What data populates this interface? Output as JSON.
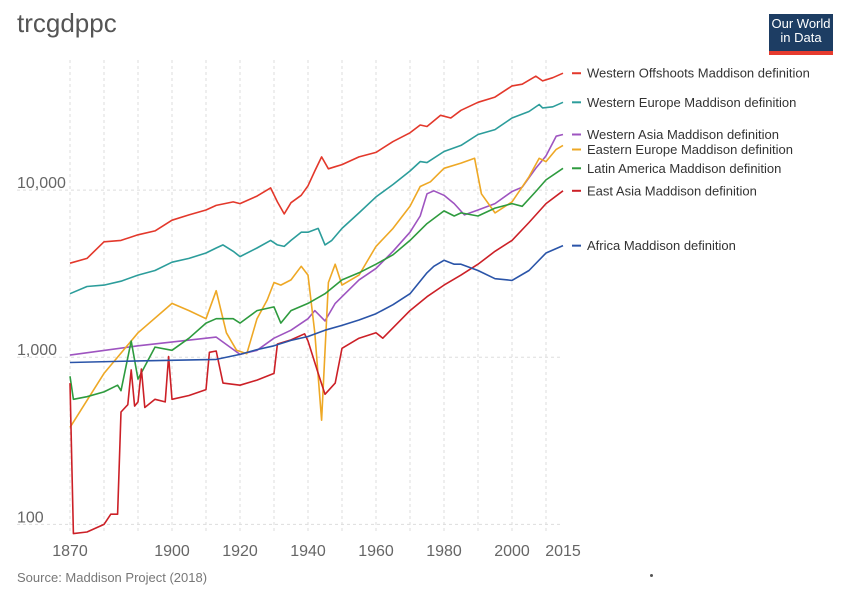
{
  "header": {
    "title": "trcgdppc",
    "logo_line1": "Our World",
    "logo_line2": "in Data"
  },
  "footer": {
    "source": "Source: Maddison Project (2018)"
  },
  "chart_data": {
    "type": "line",
    "title": "trcgdppc",
    "y_scale": "log",
    "xlim": [
      1870,
      2015
    ],
    "ylim": [
      90,
      60000
    ],
    "x_ticks": [
      1870,
      1900,
      1920,
      1940,
      1960,
      1980,
      2000,
      2015
    ],
    "y_ticks": [
      100,
      1000,
      10000
    ],
    "y_tick_labels": [
      "100",
      "1,000",
      "10,000"
    ],
    "grid": true,
    "legend": "right, labels at line ends",
    "series": [
      {
        "name": "Western Offshoots Maddison definition",
        "color": "#e3382b",
        "points": [
          [
            1870,
            3650
          ],
          [
            1875,
            3900
          ],
          [
            1880,
            4900
          ],
          [
            1885,
            5000
          ],
          [
            1890,
            5400
          ],
          [
            1895,
            5700
          ],
          [
            1900,
            6600
          ],
          [
            1905,
            7100
          ],
          [
            1910,
            7600
          ],
          [
            1913,
            8100
          ],
          [
            1918,
            8500
          ],
          [
            1920,
            8300
          ],
          [
            1925,
            9200
          ],
          [
            1929,
            10300
          ],
          [
            1931,
            8500
          ],
          [
            1933,
            7200
          ],
          [
            1935,
            8400
          ],
          [
            1938,
            9300
          ],
          [
            1940,
            10600
          ],
          [
            1942,
            13000
          ],
          [
            1944,
            15800
          ],
          [
            1946,
            13400
          ],
          [
            1948,
            13800
          ],
          [
            1950,
            14200
          ],
          [
            1955,
            15800
          ],
          [
            1960,
            16800
          ],
          [
            1965,
            19500
          ],
          [
            1970,
            22000
          ],
          [
            1973,
            24500
          ],
          [
            1975,
            24000
          ],
          [
            1979,
            28000
          ],
          [
            1982,
            27000
          ],
          [
            1985,
            30000
          ],
          [
            1990,
            33500
          ],
          [
            1995,
            36000
          ],
          [
            2000,
            42000
          ],
          [
            2003,
            43000
          ],
          [
            2007,
            48000
          ],
          [
            2009,
            45000
          ],
          [
            2012,
            47000
          ],
          [
            2015,
            50000
          ]
        ]
      },
      {
        "name": "Western Europe Maddison definition",
        "color": "#2c9d9b",
        "points": [
          [
            1870,
            2400
          ],
          [
            1875,
            2650
          ],
          [
            1880,
            2700
          ],
          [
            1885,
            2850
          ],
          [
            1890,
            3100
          ],
          [
            1895,
            3300
          ],
          [
            1900,
            3700
          ],
          [
            1905,
            3900
          ],
          [
            1910,
            4200
          ],
          [
            1913,
            4500
          ],
          [
            1915,
            4700
          ],
          [
            1918,
            4300
          ],
          [
            1920,
            4000
          ],
          [
            1925,
            4500
          ],
          [
            1929,
            5000
          ],
          [
            1931,
            4700
          ],
          [
            1933,
            4600
          ],
          [
            1935,
            5000
          ],
          [
            1938,
            5600
          ],
          [
            1940,
            5600
          ],
          [
            1943,
            5900
          ],
          [
            1945,
            4700
          ],
          [
            1947,
            5000
          ],
          [
            1950,
            5900
          ],
          [
            1955,
            7300
          ],
          [
            1960,
            9100
          ],
          [
            1965,
            10800
          ],
          [
            1970,
            13000
          ],
          [
            1973,
            14800
          ],
          [
            1975,
            14600
          ],
          [
            1980,
            17000
          ],
          [
            1985,
            18500
          ],
          [
            1990,
            21500
          ],
          [
            1995,
            23000
          ],
          [
            2000,
            27000
          ],
          [
            2005,
            29500
          ],
          [
            2008,
            32500
          ],
          [
            2009,
            31000
          ],
          [
            2012,
            31500
          ],
          [
            2015,
            33500
          ]
        ]
      },
      {
        "name": "Western Asia Maddison definition",
        "color": "#9e54c0",
        "points": [
          [
            1870,
            1030
          ],
          [
            1890,
            1170
          ],
          [
            1913,
            1320
          ],
          [
            1920,
            1040
          ],
          [
            1925,
            1100
          ],
          [
            1930,
            1300
          ],
          [
            1935,
            1450
          ],
          [
            1940,
            1700
          ],
          [
            1942,
            1900
          ],
          [
            1945,
            1650
          ],
          [
            1948,
            2100
          ],
          [
            1950,
            2300
          ],
          [
            1955,
            2900
          ],
          [
            1960,
            3400
          ],
          [
            1965,
            4300
          ],
          [
            1970,
            5600
          ],
          [
            1973,
            7000
          ],
          [
            1975,
            9500
          ],
          [
            1977,
            9900
          ],
          [
            1980,
            9300
          ],
          [
            1983,
            8300
          ],
          [
            1986,
            7100
          ],
          [
            1990,
            7600
          ],
          [
            1995,
            8300
          ],
          [
            2000,
            9800
          ],
          [
            2003,
            10400
          ],
          [
            2007,
            13500
          ],
          [
            2010,
            16000
          ],
          [
            2013,
            21000
          ],
          [
            2015,
            21500
          ]
        ]
      },
      {
        "name": "Eastern Europe Maddison definition",
        "color": "#eea825",
        "points": [
          [
            1870,
            380
          ],
          [
            1880,
            800
          ],
          [
            1890,
            1400
          ],
          [
            1900,
            2100
          ],
          [
            1905,
            1900
          ],
          [
            1910,
            1700
          ],
          [
            1913,
            2500
          ],
          [
            1916,
            1400
          ],
          [
            1919,
            1100
          ],
          [
            1922,
            1050
          ],
          [
            1925,
            1700
          ],
          [
            1928,
            2200
          ],
          [
            1930,
            2800
          ],
          [
            1932,
            2700
          ],
          [
            1935,
            2900
          ],
          [
            1938,
            3500
          ],
          [
            1940,
            3100
          ],
          [
            1942,
            1400
          ],
          [
            1944,
            420
          ],
          [
            1946,
            2800
          ],
          [
            1948,
            3600
          ],
          [
            1950,
            2700
          ],
          [
            1955,
            3100
          ],
          [
            1960,
            4600
          ],
          [
            1965,
            5900
          ],
          [
            1970,
            8000
          ],
          [
            1973,
            10500
          ],
          [
            1976,
            11200
          ],
          [
            1980,
            13500
          ],
          [
            1985,
            14500
          ],
          [
            1989,
            15500
          ],
          [
            1991,
            9500
          ],
          [
            1995,
            7300
          ],
          [
            2000,
            8500
          ],
          [
            2005,
            12000
          ],
          [
            2008,
            15500
          ],
          [
            2010,
            14800
          ],
          [
            2013,
            17500
          ],
          [
            2015,
            18500
          ]
        ]
      },
      {
        "name": "Latin America Maddison definition",
        "color": "#2e9b3e",
        "points": [
          [
            1870,
            770
          ],
          [
            1871,
            560
          ],
          [
            1875,
            580
          ],
          [
            1880,
            620
          ],
          [
            1884,
            680
          ],
          [
            1885,
            630
          ],
          [
            1888,
            1250
          ],
          [
            1890,
            740
          ],
          [
            1895,
            1150
          ],
          [
            1900,
            1100
          ],
          [
            1905,
            1300
          ],
          [
            1910,
            1600
          ],
          [
            1913,
            1700
          ],
          [
            1918,
            1700
          ],
          [
            1920,
            1600
          ],
          [
            1925,
            1900
          ],
          [
            1930,
            2000
          ],
          [
            1932,
            1600
          ],
          [
            1935,
            1900
          ],
          [
            1940,
            2100
          ],
          [
            1945,
            2400
          ],
          [
            1950,
            2900
          ],
          [
            1955,
            3200
          ],
          [
            1960,
            3600
          ],
          [
            1965,
            4100
          ],
          [
            1970,
            5000
          ],
          [
            1975,
            6300
          ],
          [
            1980,
            7500
          ],
          [
            1983,
            7000
          ],
          [
            1985,
            7300
          ],
          [
            1990,
            7000
          ],
          [
            1995,
            7800
          ],
          [
            2000,
            8300
          ],
          [
            2003,
            8000
          ],
          [
            2007,
            9800
          ],
          [
            2010,
            11500
          ],
          [
            2015,
            13500
          ]
        ]
      },
      {
        "name": "East Asia Maddison definition",
        "color": "#cc2027",
        "points": [
          [
            1870,
            700
          ],
          [
            1871,
            88
          ],
          [
            1875,
            90
          ],
          [
            1880,
            100
          ],
          [
            1882,
            115
          ],
          [
            1884,
            115
          ],
          [
            1885,
            470
          ],
          [
            1887,
            520
          ],
          [
            1888,
            840
          ],
          [
            1889,
            510
          ],
          [
            1890,
            540
          ],
          [
            1891,
            850
          ],
          [
            1892,
            500
          ],
          [
            1895,
            560
          ],
          [
            1898,
            540
          ],
          [
            1899,
            1010
          ],
          [
            1900,
            560
          ],
          [
            1905,
            590
          ],
          [
            1910,
            640
          ],
          [
            1911,
            1070
          ],
          [
            1913,
            1090
          ],
          [
            1915,
            700
          ],
          [
            1920,
            680
          ],
          [
            1925,
            730
          ],
          [
            1930,
            800
          ],
          [
            1931,
            1200
          ],
          [
            1935,
            1270
          ],
          [
            1939,
            1380
          ],
          [
            1940,
            1250
          ],
          [
            1943,
            800
          ],
          [
            1945,
            600
          ],
          [
            1948,
            700
          ],
          [
            1950,
            1130
          ],
          [
            1955,
            1300
          ],
          [
            1960,
            1400
          ],
          [
            1962,
            1300
          ],
          [
            1965,
            1500
          ],
          [
            1970,
            1900
          ],
          [
            1975,
            2300
          ],
          [
            1980,
            2700
          ],
          [
            1985,
            3100
          ],
          [
            1990,
            3600
          ],
          [
            1995,
            4300
          ],
          [
            2000,
            5000
          ],
          [
            2005,
            6400
          ],
          [
            2010,
            8300
          ],
          [
            2015,
            9900
          ]
        ]
      },
      {
        "name": "Africa Maddison definition",
        "color": "#2a54a8",
        "points": [
          [
            1870,
            930
          ],
          [
            1890,
            950
          ],
          [
            1913,
            970
          ],
          [
            1920,
            1040
          ],
          [
            1925,
            1110
          ],
          [
            1930,
            1170
          ],
          [
            1935,
            1260
          ],
          [
            1940,
            1330
          ],
          [
            1945,
            1450
          ],
          [
            1950,
            1550
          ],
          [
            1955,
            1670
          ],
          [
            1960,
            1820
          ],
          [
            1965,
            2060
          ],
          [
            1970,
            2400
          ],
          [
            1975,
            3200
          ],
          [
            1977,
            3500
          ],
          [
            1980,
            3800
          ],
          [
            1983,
            3600
          ],
          [
            1985,
            3600
          ],
          [
            1990,
            3300
          ],
          [
            1995,
            2950
          ],
          [
            2000,
            2880
          ],
          [
            2005,
            3300
          ],
          [
            2010,
            4200
          ],
          [
            2015,
            4650
          ]
        ]
      }
    ]
  }
}
